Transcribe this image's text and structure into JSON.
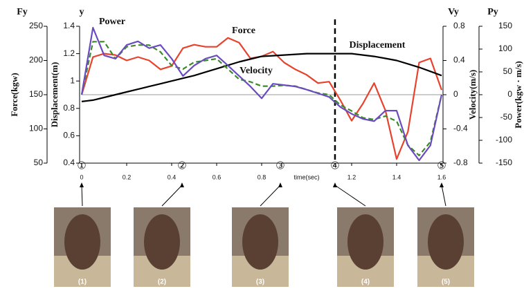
{
  "chart_data": {
    "type": "line",
    "xlabel": "time(sec)",
    "xlim": [
      0,
      1.6
    ],
    "xticks": [
      0,
      0.2,
      0.4,
      0.6,
      0.8,
      1.2,
      1.4,
      1.6
    ],
    "x": [
      0,
      0.05,
      0.1,
      0.15,
      0.2,
      0.25,
      0.3,
      0.35,
      0.4,
      0.45,
      0.5,
      0.55,
      0.6,
      0.65,
      0.7,
      0.75,
      0.8,
      0.85,
      0.9,
      0.95,
      1.0,
      1.05,
      1.1,
      1.15,
      1.2,
      1.25,
      1.3,
      1.35,
      1.4,
      1.45,
      1.5,
      1.55,
      1.6
    ],
    "axes": [
      {
        "symbol": "Fy",
        "label": "Force(kgw)",
        "lim": [
          50,
          250
        ],
        "ticks": [
          50,
          100,
          150,
          200,
          250
        ]
      },
      {
        "symbol": "y",
        "label": "Displacement(m)",
        "lim": [
          0.4,
          1.4
        ],
        "ticks": [
          0.4,
          0.6,
          0.8,
          1,
          1.2,
          1.4
        ]
      },
      {
        "symbol": "Vy",
        "label": "Velocity(m/s)",
        "lim": [
          -0.8,
          0.8
        ],
        "ticks": [
          -0.8,
          -0.4,
          0,
          0.4,
          0.8
        ]
      },
      {
        "symbol": "Py",
        "label": "Power(kgw · m/s)",
        "lim": [
          -150,
          150
        ],
        "ticks": [
          -150,
          -100,
          -50,
          0,
          50,
          100,
          150
        ]
      }
    ],
    "series": [
      {
        "name": "Force",
        "color": "#e8412c",
        "axis": 0,
        "dashed": false,
        "values": [
          150,
          205,
          210,
          208,
          200,
          205,
          200,
          187,
          192,
          218,
          223,
          220,
          220,
          233,
          226,
          203,
          206,
          213,
          197,
          187,
          179,
          167,
          169,
          142,
          112,
          137,
          167,
          127,
          56,
          96,
          197,
          203,
          157
        ]
      },
      {
        "name": "Displacement",
        "color": "#000000",
        "axis": 1,
        "dashed": false,
        "values": [
          0.85,
          0.86,
          0.88,
          0.9,
          0.92,
          0.94,
          0.96,
          0.98,
          1.0,
          1.02,
          1.04,
          1.065,
          1.09,
          1.115,
          1.14,
          1.16,
          1.18,
          1.185,
          1.19,
          1.195,
          1.2,
          1.2,
          1.2,
          1.2,
          1.2,
          1.19,
          1.18,
          1.165,
          1.15,
          1.125,
          1.1,
          1.07,
          1.04
        ]
      },
      {
        "name": "Velocity",
        "color": "#3a8a2a",
        "axis": 2,
        "dashed": true,
        "values": [
          0,
          0.62,
          0.62,
          0.42,
          0.56,
          0.58,
          0.58,
          0.5,
          0.34,
          0.3,
          0.38,
          0.4,
          0.42,
          0.3,
          0.18,
          0.15,
          0.1,
          0.1,
          0.11,
          0.1,
          0.06,
          0.02,
          0,
          -0.12,
          -0.19,
          -0.27,
          -0.29,
          -0.25,
          -0.31,
          -0.59,
          -0.71,
          -0.55,
          0
        ]
      },
      {
        "name": "Power",
        "color": "#6a4bbf",
        "axis": 3,
        "dashed": false,
        "values": [
          0,
          147,
          86,
          79,
          109,
          117,
          102,
          109,
          79,
          41,
          64,
          79,
          86,
          64,
          41,
          18,
          -8,
          24,
          21,
          18,
          11,
          3,
          -5,
          -27,
          -42,
          -53,
          -58,
          -35,
          -35,
          -111,
          -144,
          -111,
          0
        ]
      }
    ],
    "event_line_x": 1.126,
    "phases": [
      {
        "label": "①",
        "x": 0,
        "caption": "(1)"
      },
      {
        "label": "②",
        "x": 0.446,
        "caption": "(2)"
      },
      {
        "label": "③",
        "x": 0.883,
        "caption": "(3)"
      },
      {
        "label": "④",
        "x": 1.126,
        "caption": "(4)"
      },
      {
        "label": "⑤",
        "x": 1.6,
        "caption": "(5)"
      }
    ]
  }
}
